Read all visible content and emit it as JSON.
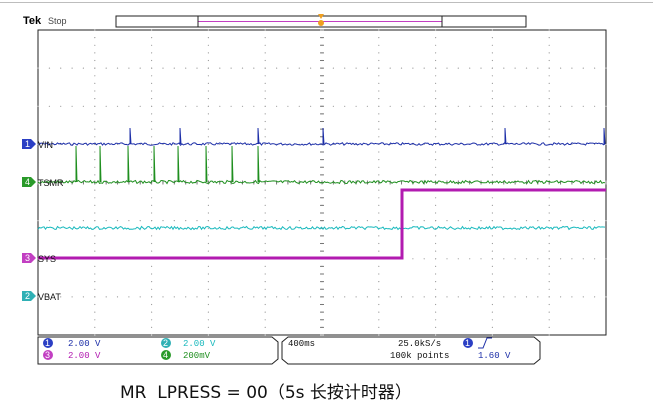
{
  "header": {
    "brand": "Tek",
    "acquisition_status": "Stop"
  },
  "channels": [
    {
      "marker": "1",
      "name": "VIN",
      "color": "#1d2fa8",
      "scale": "2.00 V"
    },
    {
      "marker": "4",
      "name": "TSMR",
      "color": "#1f8f1f",
      "scale": "200mV"
    },
    {
      "marker": "2",
      "name": "",
      "color": "#19b9bd",
      "scale": "2.00 V"
    },
    {
      "marker": "3",
      "name": "SYS",
      "color": "#b21bb0",
      "scale": "2.00 V"
    },
    {
      "marker": "2",
      "name": "VBAT",
      "color": "#19b9bd",
      "scale": ""
    }
  ],
  "readout": {
    "ch1_scale": "2.00 V",
    "ch2_scale": "2.00 V",
    "ch3_scale": "2.00 V",
    "ch4_scale": "200mV",
    "timebase": "400ms",
    "sample_rate": "25.0kS/s",
    "record_length": "100k points",
    "trigger_channel": "1",
    "trigger_slope_icon": "rising-edge-icon",
    "trigger_level": "1.60 V"
  },
  "caption": "MR  LPRESS = 00（5s 长按计时器）"
}
